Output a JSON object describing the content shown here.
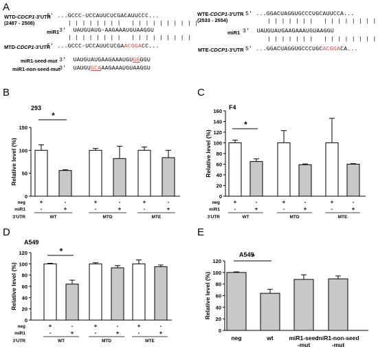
{
  "panelA": {
    "letter": "A",
    "wtd_name": [
      "WTD-",
      "CDCP1",
      "-3'UTR"
    ],
    "wtd_range": "(2487 - 2508)",
    "wtd_seq": "5' ...GCCC-UCCAUUCUCGACAUUCCC...",
    "bars_left": "| | | | | | | |   | | | | | | | | | |",
    "mir1_label": "miR1",
    "mir1_seq_left": "3'  UAUGUAUG-AAGAAAUGUAAGGU",
    "bars_left2": "| | | | | | | |   | | | | | | | | |",
    "mtd_name": [
      "MTD-",
      "CDCP1",
      "-3'UTR"
    ],
    "mtd_seq_a": "5' ...GCCC-UCCAUUCUCGA",
    "mtd_seq_red": "ACGGA",
    "mtd_seq_b": "CC...",
    "seedmut_label": "miR1-seed-mut",
    "seedmut_seq_a": "3'  UAUGUAUGAAGAAAUGU",
    "seedmut_seq_red": "GG",
    "seedmut_seq_b": "GGU",
    "nonseed_label": "miR1-non-seed-mut",
    "nonseed_seq_a": "3'  UAUGU",
    "nonseed_seq_red": "GCA",
    "nonseed_seq_b": "AAGAAAUGUAAGGU",
    "wte_name": [
      "WTE-",
      "CDCP1",
      "-3'UTR"
    ],
    "wte_range": "(2533 - 2554)",
    "wte_seq": "5' ...GGACUAGGUGCCCUGCAUUCCA...",
    "bars_right": "| | | | | | |   | | | | | | | | |",
    "mir1_seq_right": "3'  UAUGUAUGAAGAAAUGUAAGGU",
    "bars_right2": "| | | | | | |   | | | | | | | |",
    "mte_name": [
      "MTE-",
      "CDCP1",
      "-3'UTR"
    ],
    "mte_seq_a": "5' ...GGACUAGGUGCCCUGC",
    "mte_seq_red": "ACGGA",
    "mte_seq_b": "CA..."
  },
  "chart_data": [
    {
      "panel": "B",
      "type": "bar",
      "title": "293",
      "ylabel": "Relative level (%)",
      "ylim": [
        0,
        150
      ],
      "yticks": [
        0,
        50,
        100,
        150
      ],
      "values": [
        100,
        56,
        100,
        82,
        100,
        84
      ],
      "errors": [
        12,
        1.5,
        4,
        27,
        7,
        16
      ],
      "fills": [
        "white",
        "gray",
        "white",
        "gray",
        "white",
        "gray"
      ],
      "row_labels": [
        "neg",
        "miR1",
        "3'UTR"
      ],
      "neg_signs": [
        "+",
        "-",
        "+",
        "-",
        "+",
        "-"
      ],
      "mir_signs": [
        "-",
        "+",
        "-",
        "+",
        "-",
        "+"
      ],
      "groups": [
        "WT",
        "MTD",
        "MTE"
      ],
      "significance": "*"
    },
    {
      "panel": "C",
      "type": "bar",
      "title": "F4",
      "ylabel": "Relative level (%)",
      "ylim": [
        0,
        160
      ],
      "yticks": [
        0,
        20,
        40,
        60,
        80,
        100,
        120,
        140,
        160
      ],
      "values": [
        100,
        65,
        100,
        59,
        100,
        60
      ],
      "errors": [
        5,
        5,
        23,
        1.5,
        46,
        1
      ],
      "fills": [
        "white",
        "gray",
        "white",
        "gray",
        "white",
        "gray"
      ],
      "row_labels": [
        "neg",
        "miR1",
        "3'UTR"
      ],
      "neg_signs": [
        "+",
        "-",
        "+",
        "-",
        "+",
        "-"
      ],
      "mir_signs": [
        "-",
        "+",
        "-",
        "+",
        "-",
        "+"
      ],
      "groups": [
        "WT",
        "MTD",
        "MTE"
      ],
      "significance": "*"
    },
    {
      "panel": "D",
      "type": "bar",
      "title": "A549",
      "ylabel": "Relative level (%)",
      "ylim": [
        0,
        120
      ],
      "yticks": [
        0,
        20,
        40,
        60,
        80,
        100,
        120
      ],
      "values": [
        100,
        64,
        100,
        93,
        100,
        95
      ],
      "errors": [
        1,
        7,
        2,
        4,
        7,
        3
      ],
      "fills": [
        "white",
        "gray",
        "white",
        "gray",
        "white",
        "gray"
      ],
      "row_labels": [
        "neg",
        "miR1",
        "3'UTR"
      ],
      "neg_signs": [
        "+",
        "-",
        "+",
        "-",
        "+",
        "-"
      ],
      "mir_signs": [
        "-",
        "+",
        "-",
        "+",
        "-",
        "+"
      ],
      "groups": [
        "WT",
        "MTD",
        "MTE"
      ],
      "significance": "*"
    },
    {
      "panel": "E",
      "type": "bar",
      "title": "A549",
      "ylabel": "Relative level (%)",
      "ylim": [
        0,
        120
      ],
      "yticks": [
        0,
        20,
        40,
        60,
        80,
        100,
        120
      ],
      "categories": [
        "neg",
        "wt",
        "miR1-seed-mut",
        "miR1-non-seed-mut"
      ],
      "category_lines": [
        [
          "neg"
        ],
        [
          "wt"
        ],
        [
          "miR1-seed",
          "-mut"
        ],
        [
          "miR1-non-seed",
          "-mut"
        ]
      ],
      "values": [
        100,
        64,
        88,
        89
      ],
      "errors": [
        1,
        7,
        8,
        5
      ],
      "fills": [
        "gray",
        "gray",
        "gray",
        "gray"
      ],
      "significance": "*"
    }
  ],
  "colors": {
    "gray": "#c8c8c8",
    "white": "#ffffff",
    "red": "#e0403a"
  }
}
